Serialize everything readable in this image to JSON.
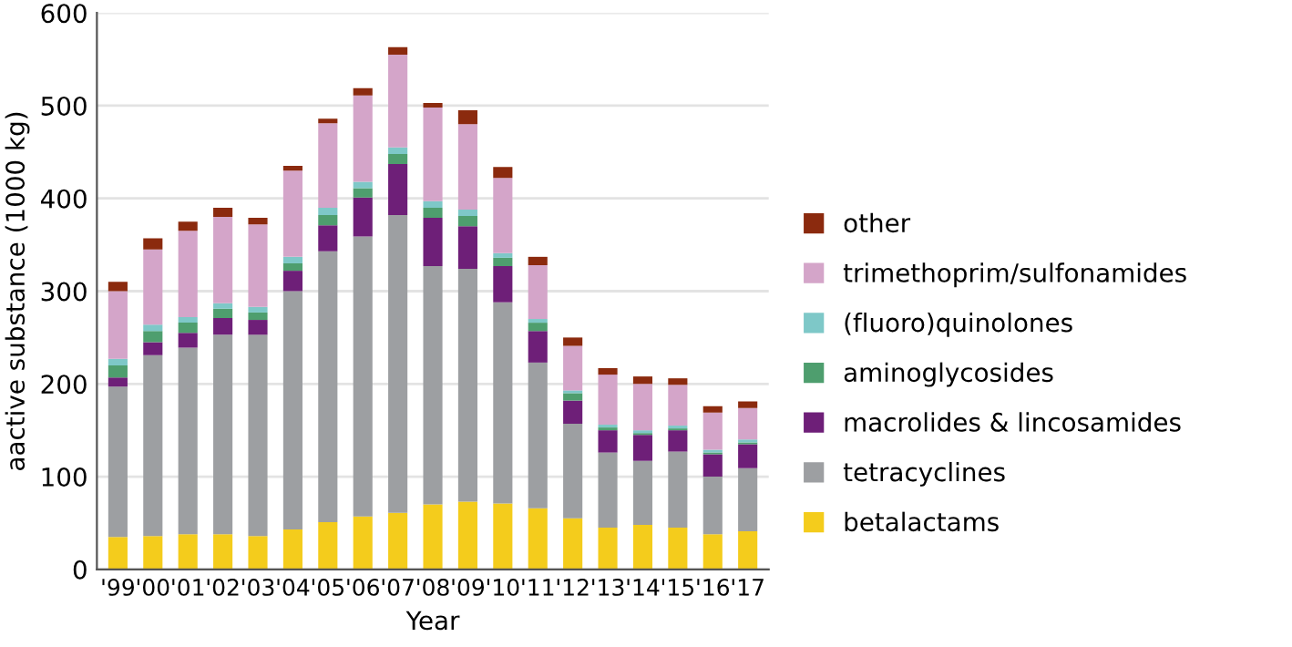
{
  "chart_data": {
    "type": "bar",
    "stacked": true,
    "xlabel": "Year",
    "ylabel": "aactive substance (1000 kg)",
    "categories": [
      "'99",
      "'00",
      "'01",
      "'02",
      "'03",
      "'04",
      "'05",
      "'06",
      "'07",
      "'08",
      "'09",
      "'10",
      "'11",
      "'12",
      "'13",
      "'14",
      "'15",
      "'16",
      "'17"
    ],
    "series": [
      {
        "name": "betalactams",
        "color": "#f4cc1c",
        "values": [
          35,
          36,
          38,
          38,
          36,
          43,
          51,
          57,
          61,
          70,
          73,
          71,
          66,
          55,
          45,
          48,
          45,
          38,
          41
        ]
      },
      {
        "name": "tetracyclines",
        "color": "#9d9fa2",
        "values": [
          162,
          195,
          201,
          215,
          217,
          257,
          292,
          302,
          321,
          257,
          251,
          217,
          157,
          102,
          81,
          69,
          82,
          62,
          68
        ]
      },
      {
        "name": "macrolides & lincosamides",
        "color": "#6e1f78",
        "values": [
          10,
          14,
          16,
          18,
          16,
          22,
          28,
          42,
          55,
          52,
          46,
          39,
          34,
          25,
          24,
          28,
          23,
          24,
          26
        ]
      },
      {
        "name": "aminoglycosides",
        "color": "#4e9e6e",
        "values": [
          13,
          12,
          11,
          10,
          8,
          8,
          11,
          10,
          11,
          11,
          11,
          9,
          9,
          8,
          3,
          2,
          2,
          2,
          2
        ]
      },
      {
        "name": "(fluoro)quinolones",
        "color": "#7ec8c8",
        "values": [
          7,
          7,
          6,
          6,
          6,
          7,
          8,
          7,
          7,
          7,
          7,
          5,
          4,
          3,
          3,
          3,
          3,
          3,
          3
        ]
      },
      {
        "name": "trimethoprim/sulfonamides",
        "color": "#d4a5c9",
        "values": [
          73,
          81,
          93,
          93,
          89,
          93,
          91,
          93,
          100,
          101,
          92,
          81,
          58,
          48,
          54,
          50,
          44,
          40,
          34
        ]
      },
      {
        "name": "other",
        "color": "#8b2a0e",
        "values": [
          10,
          12,
          10,
          10,
          7,
          5,
          5,
          8,
          8,
          5,
          15,
          12,
          9,
          9,
          7,
          8,
          7,
          7,
          7
        ]
      }
    ],
    "ylim": [
      0,
      600
    ],
    "yticks": [
      0,
      100,
      200,
      300,
      400,
      500,
      600
    ],
    "grid": "y",
    "legend": "right"
  }
}
